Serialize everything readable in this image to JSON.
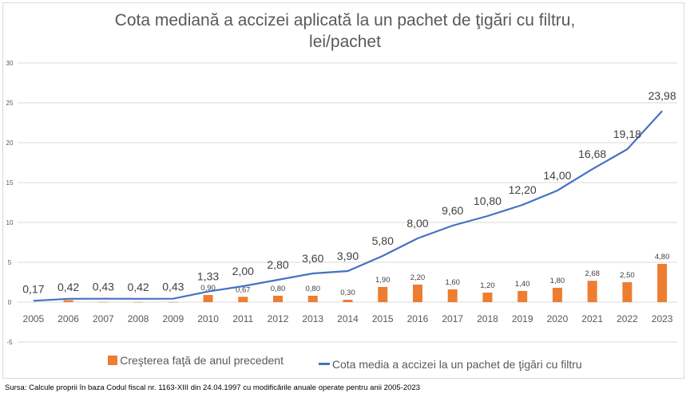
{
  "chart_data": {
    "type": "bar+line",
    "title_line1": "Cota mediană a accizei aplicată la un pachet de ţigări cu filtru,",
    "title_line2": "lei/pachet",
    "categories": [
      "2005",
      "2006",
      "2007",
      "2008",
      "2009",
      "2010",
      "2011",
      "2012",
      "2013",
      "2014",
      "2015",
      "2016",
      "2017",
      "2018",
      "2019",
      "2020",
      "2021",
      "2022",
      "2023"
    ],
    "series": [
      {
        "name": "Creşterea faţă de anul precedent",
        "type": "bar",
        "color": "#ed7d31",
        "values": [
          null,
          0.25,
          0.01,
          -0.01,
          0.01,
          0.9,
          0.67,
          0.8,
          0.8,
          0.3,
          1.9,
          2.2,
          1.6,
          1.2,
          1.4,
          1.8,
          2.68,
          2.5,
          4.8
        ],
        "labels": [
          null,
          null,
          null,
          null,
          null,
          "0,90",
          "0,67",
          "0,80",
          "0,80",
          "0,30",
          "1,90",
          "2,20",
          "1,60",
          "1,20",
          "1,40",
          "1,80",
          "2,68",
          "2,50",
          "4,80"
        ]
      },
      {
        "name": "Cota media a accizei la un pachet de ţigări cu filtru",
        "type": "line",
        "color": "#4472c4",
        "values": [
          0.17,
          0.42,
          0.43,
          0.42,
          0.43,
          1.33,
          2.0,
          2.8,
          3.6,
          3.9,
          5.8,
          8.0,
          9.6,
          10.8,
          12.2,
          14.0,
          16.68,
          19.18,
          23.98
        ],
        "labels": [
          "0,17",
          "0,42",
          "0,43",
          "0,42",
          "0,43",
          "1,33",
          "2,00",
          "2,80",
          "3,60",
          "3,90",
          "5,80",
          "8,00",
          "9,60",
          "10,80",
          "12,20",
          "14,00",
          "16,68",
          "19,18",
          "23,98"
        ]
      }
    ],
    "ylim": [
      -5,
      30
    ],
    "yticks": [
      "-5",
      "0",
      "5",
      "10",
      "15",
      "20",
      "25",
      "30"
    ],
    "ytick_values": [
      -5,
      0,
      5,
      10,
      15,
      20,
      25,
      30
    ],
    "grid": true,
    "legend": "bottom"
  },
  "source": "Sursa: Calcule proprii în baza Codul fiscal nr. 1163-XIII  din  24.04.1997 cu modificările anuale operate pentru  anii 2005-2023"
}
